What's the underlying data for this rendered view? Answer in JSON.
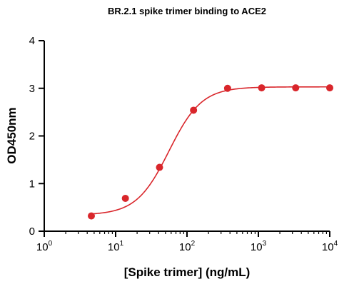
{
  "chart_data": {
    "type": "scatter",
    "title": "BR.2.1 spike trimer binding to ACE2",
    "xlabel": "[Spike trimer] (ng/mL)",
    "ylabel": "OD450nm",
    "x_scale": "log",
    "xlim": [
      1,
      10000
    ],
    "ylim": [
      0,
      4
    ],
    "x_ticks": [
      {
        "value": 1,
        "base": "10",
        "exp": "0"
      },
      {
        "value": 10,
        "base": "10",
        "exp": "1"
      },
      {
        "value": 100,
        "base": "10",
        "exp": "2"
      },
      {
        "value": 1000,
        "base": "10",
        "exp": "3"
      },
      {
        "value": 10000,
        "base": "10",
        "exp": "4"
      }
    ],
    "y_ticks": [
      "0",
      "1",
      "2",
      "3",
      "4"
    ],
    "grid": false,
    "color": "#d9262b",
    "series": [
      {
        "x": [
          4.57,
          13.7,
          41.2,
          123.5,
          370.4,
          1111,
          3333,
          10000
        ],
        "y": [
          0.32,
          0.69,
          1.34,
          2.54,
          3.0,
          3.01,
          3.01,
          3.01
        ]
      }
    ],
    "fit": {
      "bottom": 0.34,
      "top": 3.03,
      "ec50": 56,
      "hill": 1.9
    }
  }
}
